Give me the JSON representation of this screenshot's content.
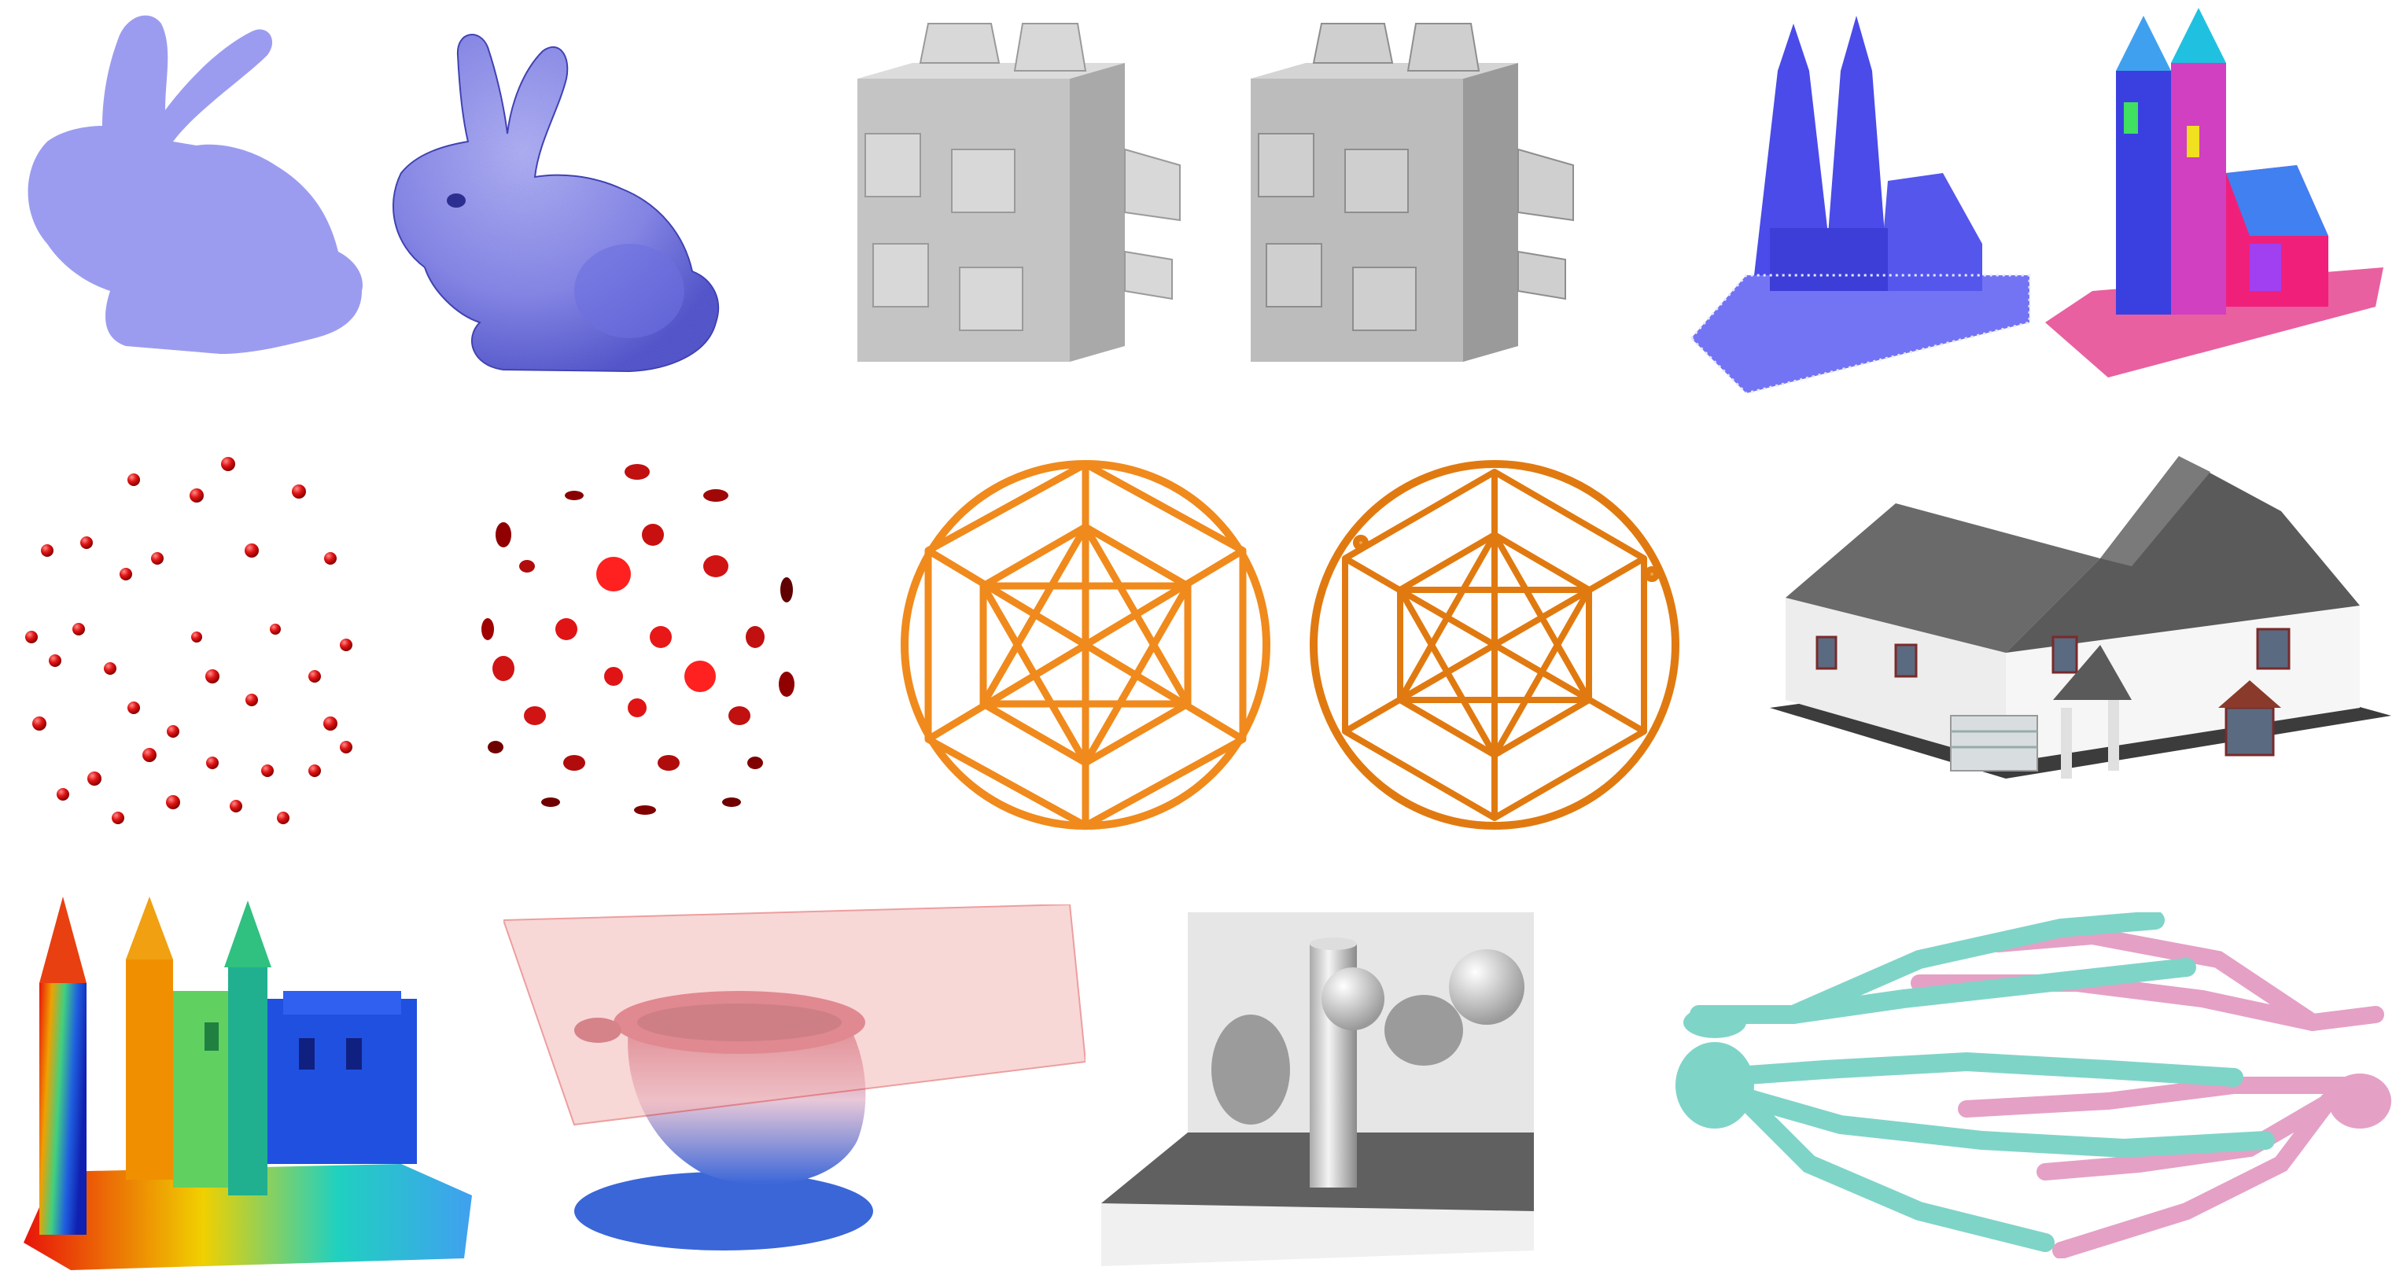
{
  "figure": {
    "layout": "grid",
    "rows": 3,
    "panels": [
      {
        "id": "bunny-silhouette-vs-shaded",
        "icons": [
          "bunny-flat-icon",
          "bunny-shaded-icon"
        ],
        "colors": {
          "bunny": "#9b9cf0",
          "bunny_dark": "#5b5fd6"
        }
      },
      {
        "id": "block-rendering-pair",
        "icons": [
          "block-flat-icon",
          "block-smooth-icon"
        ],
        "colors": {
          "block": "#bdbdbd",
          "block_light": "#e2e2e2",
          "block_dark": "#8e8e8e"
        }
      },
      {
        "id": "cathedral-point-cloud",
        "icons": [
          "cathedral-points-icon",
          "cathedral-segmented-icon"
        ],
        "colors": {
          "points": "#4b4cf0"
        }
      },
      {
        "id": "sphere-point-distribution",
        "icons": [
          "red-points-icon",
          "red-disks-icon"
        ],
        "colors": {
          "points": "#e01414"
        }
      },
      {
        "id": "geodesic-wireframe",
        "icons": [
          "wireframe-sphere-icon",
          "wireframe-sphere-perspective-icon"
        ],
        "colors": {
          "wire": "#f08a1c"
        }
      },
      {
        "id": "house-model",
        "icons": [
          "house-icon"
        ],
        "colors": {
          "walls": "#f4f4f4",
          "roof": "#6a6a6a",
          "base": "#3c3c3c"
        }
      },
      {
        "id": "castle-heatmap",
        "icons": [
          "castle-icon"
        ],
        "colors": {
          "gradient": [
            "#e8140a",
            "#f0a000",
            "#40d080",
            "#2050e0"
          ]
        }
      },
      {
        "id": "bunny-clipping-plane",
        "icons": [
          "plane-icon",
          "clipped-bunny-icon"
        ],
        "colors": {
          "plane": "#f4b8b8",
          "top": "#c85060",
          "bottom": "#3a66d8"
        }
      },
      {
        "id": "shadow-scene",
        "icons": [
          "cylinder-icon",
          "sphere-icon",
          "floor-icon"
        ],
        "colors": {
          "floor": "#606060",
          "wall": "#e6e6e6"
        }
      },
      {
        "id": "hand-skeletons",
        "icons": [
          "hand-bones-icon"
        ],
        "colors": {
          "cyan": "#7fd4c8",
          "pink": "#e5a0c6"
        }
      }
    ]
  }
}
